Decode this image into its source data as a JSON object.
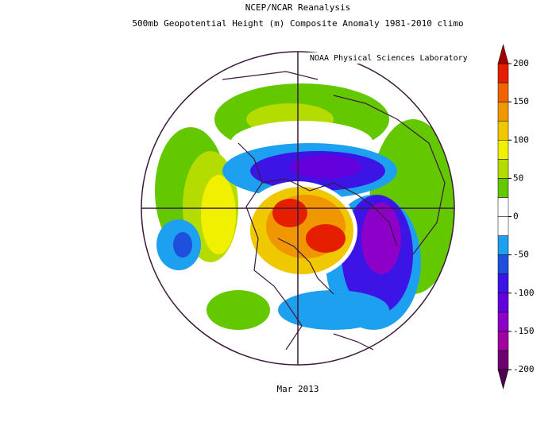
{
  "header": {
    "title": "NCEP/NCAR Reanalysis",
    "subtitle": "500mb Geopotential Height (m) Composite Anomaly 1981-2010 climo",
    "credit": "NOAA Physical Sciences Laboratory"
  },
  "map": {
    "date_label": "Mar 2013"
  },
  "colorbar": {
    "ticks": [
      -200,
      -150,
      -100,
      -50,
      0,
      50,
      100,
      150,
      200
    ],
    "levels": [
      -200,
      -175,
      -150,
      -125,
      -100,
      -75,
      -50,
      -25,
      0,
      25,
      50,
      75,
      100,
      125,
      150,
      175,
      200
    ],
    "colors": [
      "#6e0070",
      "#a000a0",
      "#8c00c8",
      "#6400dc",
      "#3c14e6",
      "#1e50dc",
      "#1ea0f0",
      "#ffffff",
      "#ffffff",
      "#64c800",
      "#b4dc00",
      "#f0f000",
      "#f0c800",
      "#f09600",
      "#f06400",
      "#e61e00"
    ],
    "under_color": "#500050",
    "over_color": "#a00000"
  }
}
